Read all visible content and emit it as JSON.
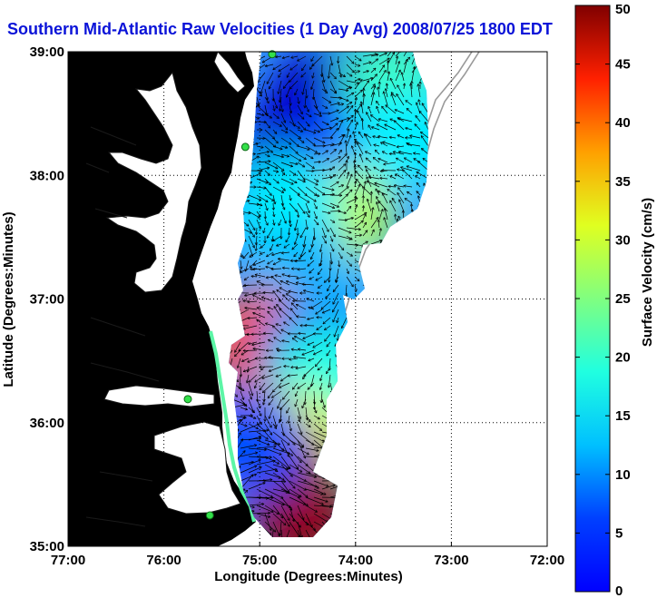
{
  "title": "Southern Mid-Atlantic Raw Velocities (1 Day Avg) 2008/07/25 1800 EDT",
  "map": {
    "xlabel": "Longitude (Degrees:Minutes)",
    "ylabel": "Latitude (Degrees:Minutes)",
    "xlim": [
      -77,
      -72
    ],
    "ylim": [
      35,
      39
    ],
    "x_ticks": [
      {
        "value": -77,
        "label": "77:00"
      },
      {
        "value": -76,
        "label": "76:00"
      },
      {
        "value": -75,
        "label": "75:00"
      },
      {
        "value": -74,
        "label": "74:00"
      },
      {
        "value": -73,
        "label": "73:00"
      },
      {
        "value": -72,
        "label": "72:00"
      }
    ],
    "y_ticks": [
      {
        "value": 35,
        "label": "35:00"
      },
      {
        "value": 36,
        "label": "36:00"
      },
      {
        "value": 37,
        "label": "37:00"
      },
      {
        "value": 38,
        "label": "38:00"
      },
      {
        "value": 39,
        "label": "39:00"
      }
    ],
    "land_color": "#5cf5a6",
    "water_color": "#ffffff",
    "grid": "dotted"
  },
  "colorbar": {
    "label": "Surface Velocity (cm/s)",
    "min": 0,
    "max": 50,
    "ticks": [
      0,
      5,
      10,
      15,
      20,
      25,
      30,
      35,
      40,
      45,
      50
    ],
    "colormap": "jet"
  },
  "stations": [
    {
      "lon": -74.87,
      "lat": 38.98
    },
    {
      "lon": -75.15,
      "lat": 38.23
    },
    {
      "lon": -75.75,
      "lat": 36.19
    },
    {
      "lon": -75.52,
      "lat": 35.25
    }
  ],
  "velocity_blobs": [
    {
      "lon": -74.4,
      "lat": 38.6,
      "speed": 3
    },
    {
      "lon": -74.7,
      "lat": 38.2,
      "speed": 4
    },
    {
      "lon": -74.0,
      "lat": 38.3,
      "speed": 8
    },
    {
      "lon": -73.6,
      "lat": 38.7,
      "speed": 22
    },
    {
      "lon": -73.5,
      "lat": 38.3,
      "speed": 18
    },
    {
      "lon": -74.15,
      "lat": 37.65,
      "speed": 28
    },
    {
      "lon": -74.7,
      "lat": 37.75,
      "speed": 18
    },
    {
      "lon": -74.5,
      "lat": 37.15,
      "speed": 15
    },
    {
      "lon": -75.0,
      "lat": 36.65,
      "speed": 40
    },
    {
      "lon": -74.5,
      "lat": 36.55,
      "speed": 12
    },
    {
      "lon": -74.3,
      "lat": 36.35,
      "speed": 20
    },
    {
      "lon": -74.6,
      "lat": 35.85,
      "speed": 30
    },
    {
      "lon": -74.8,
      "lat": 35.6,
      "speed": 46
    },
    {
      "lon": -74.6,
      "lat": 35.3,
      "speed": 49
    },
    {
      "lon": -75.05,
      "lat": 35.8,
      "speed": 10
    }
  ]
}
